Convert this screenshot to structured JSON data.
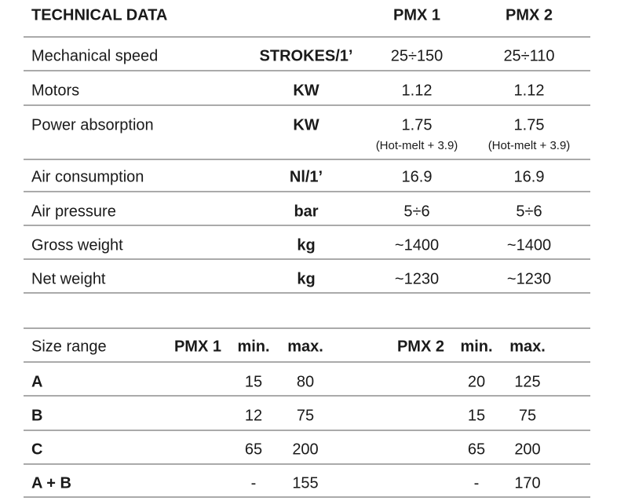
{
  "table1": {
    "header": [
      "TECHNICAL DATA",
      "PMX 1",
      "PMX 2"
    ],
    "rows": [
      [
        "Mechanical speed",
        "STROKES/1’",
        "25÷150",
        "25÷110"
      ],
      [
        "Motors",
        "KW",
        "1.12",
        "1.12"
      ],
      [
        "Power absorption",
        "KW",
        "1.75",
        "1.75"
      ],
      [
        "Air consumption",
        "Nl/1’",
        "16.9",
        "16.9"
      ],
      [
        "Air pressure",
        "bar",
        "5÷6",
        "5÷6"
      ],
      [
        "Gross weight",
        "kg",
        "~1400",
        "~1400"
      ],
      [
        "Net weight",
        "kg",
        "~1230",
        "~1230"
      ]
    ],
    "power_notes": [
      "(Hot-melt + 3.9)",
      "(Hot-melt + 3.9)"
    ]
  },
  "table2": {
    "header": [
      "Size range",
      "PMX 1",
      "min.",
      "max.",
      "PMX 2",
      "min.",
      "max."
    ],
    "rows": [
      [
        "A",
        "15",
        "80",
        "20",
        "125"
      ],
      [
        "B",
        "12",
        "75",
        "15",
        "75"
      ],
      [
        "C",
        "65",
        "200",
        "65",
        "200"
      ],
      [
        "A + B",
        "-",
        "155",
        "-",
        "170"
      ]
    ]
  }
}
